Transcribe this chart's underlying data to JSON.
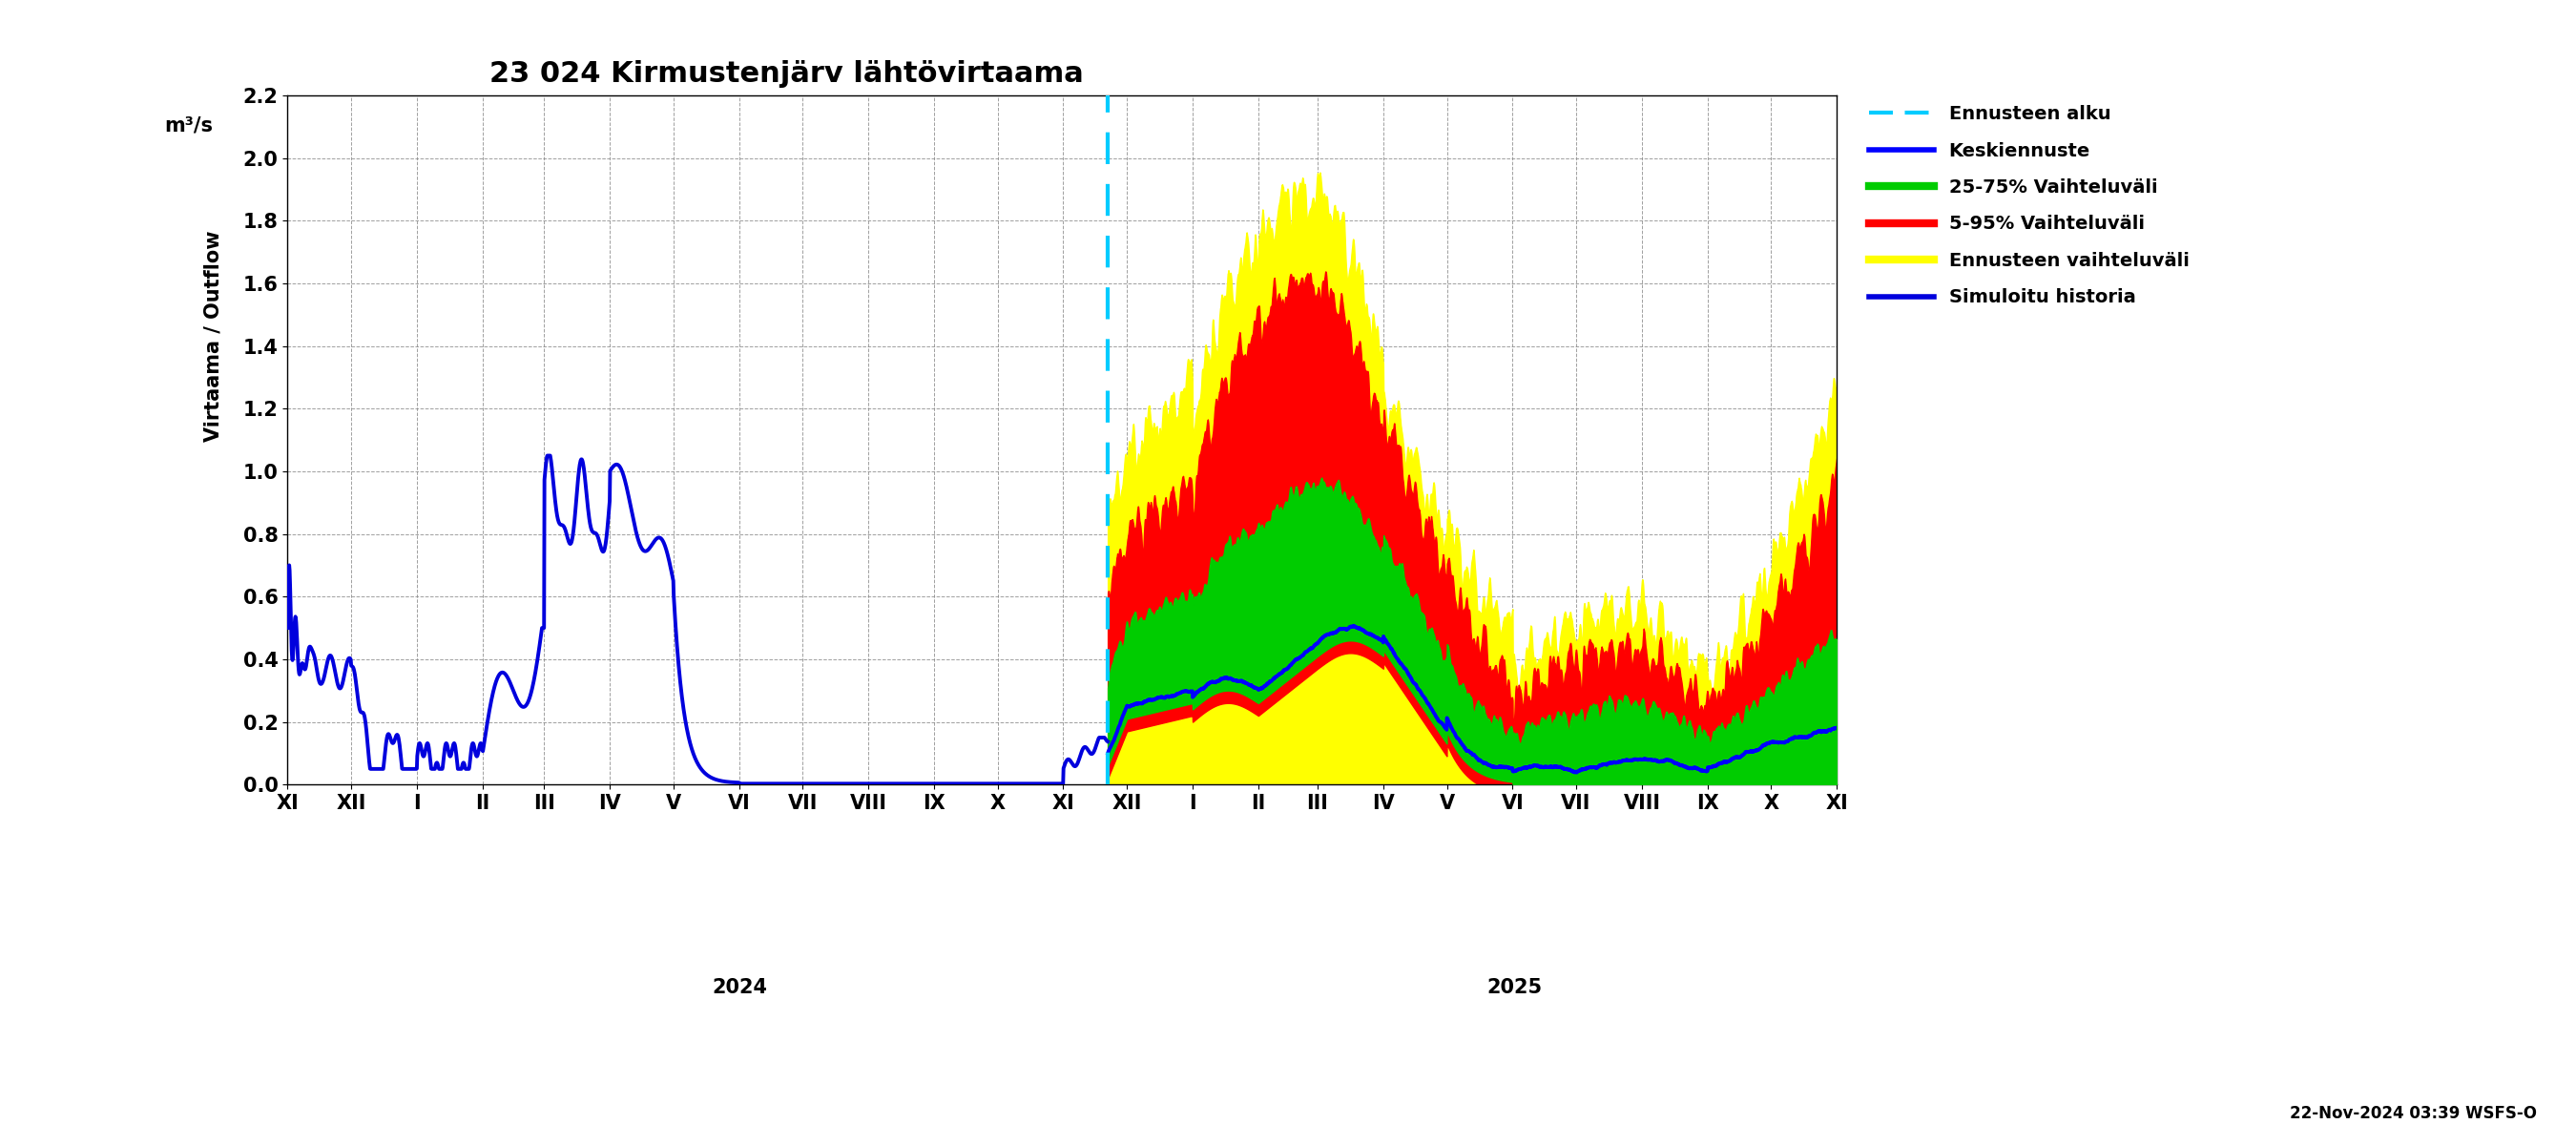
{
  "title": "23 024 Kirmustenjärv lähtövirtaama",
  "ylabel_top": "m³/s",
  "ylabel_main": "Virtaama / Outflow",
  "ylim": [
    0.0,
    2.2
  ],
  "yticks": [
    0.0,
    0.2,
    0.4,
    0.6,
    0.8,
    1.0,
    1.2,
    1.4,
    1.6,
    1.8,
    2.0,
    2.2
  ],
  "footnote": "22-Nov-2024 03:39 WSFS-O",
  "colors": {
    "simuloitu": "#0000dd",
    "keskiennuste": "#0000ff",
    "band_25_75": "#00cc00",
    "band_5_95": "#ff0000",
    "band_enn": "#ffff00",
    "ennusteen_alku": "#00ccff"
  },
  "legend_labels": [
    "Ennusteen alku",
    "Keskiennuste",
    "25-75% Vaihteluväli",
    "5-95% Vaihteluväli",
    "Ennusteen vaihteluväli",
    "Simuloitu historia"
  ]
}
